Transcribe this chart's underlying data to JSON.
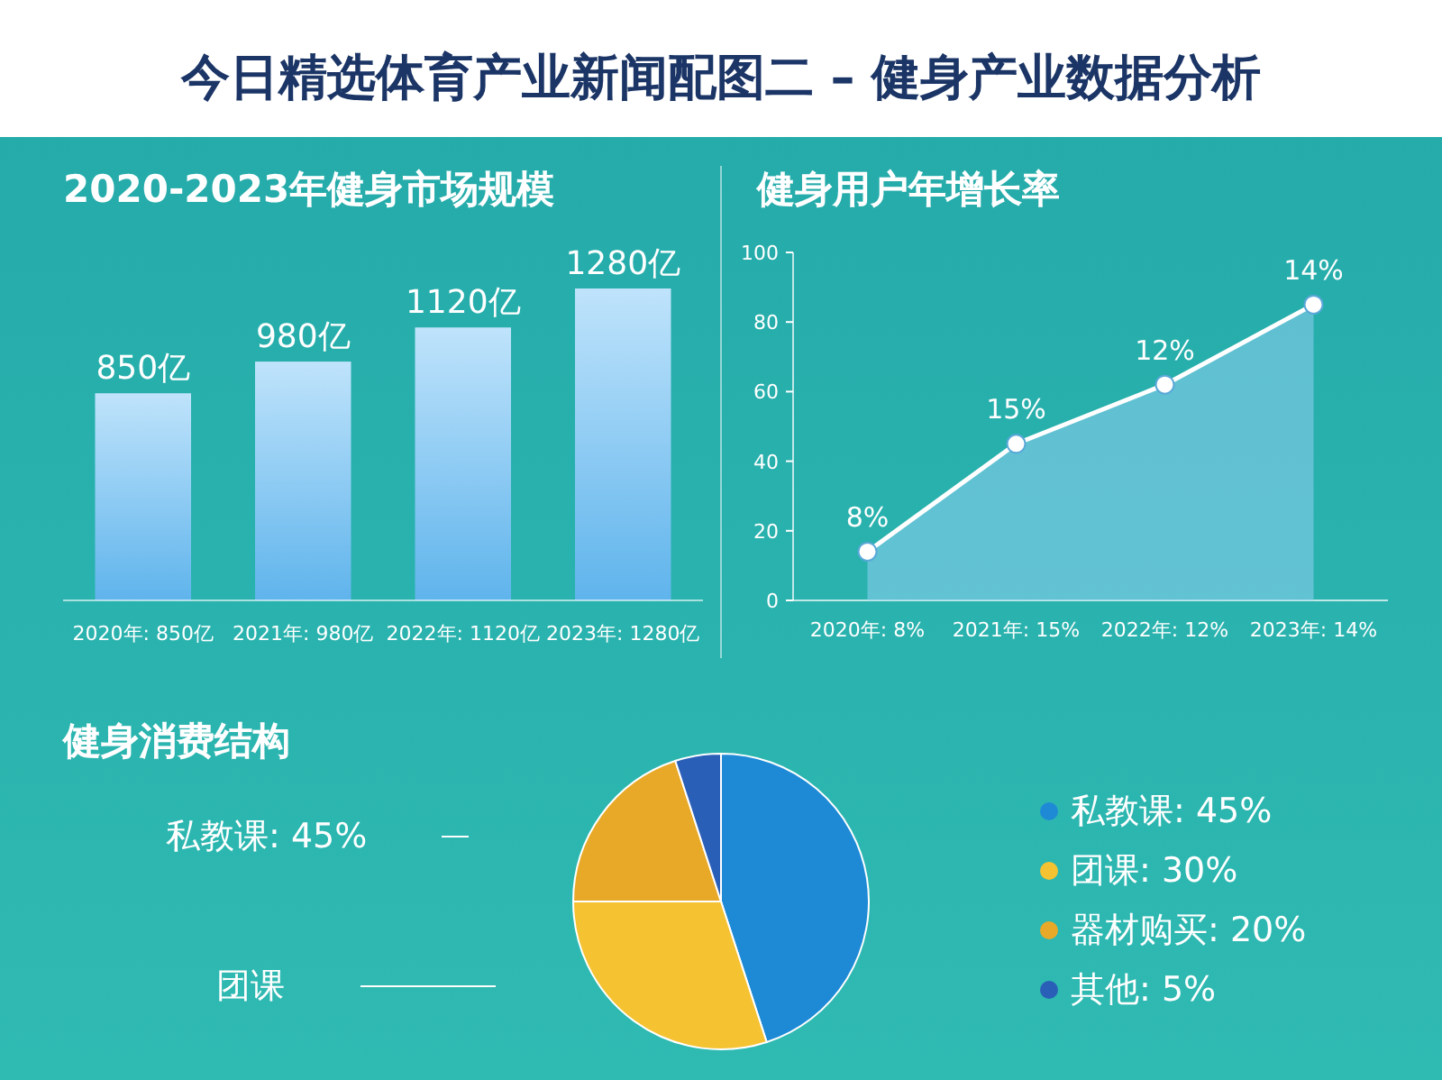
{
  "chart_data": [
    {
      "type": "bar",
      "title": "今日精选体育产业新闻配图二 – 健身产业数据分析",
      "subtitle": "2020-2023年健身市场规模",
      "categories": [
        "2020年: 850亿",
        "2021年: 980亿",
        "2022年: 1120亿",
        "2023年: 1280亿"
      ],
      "values": [
        850,
        980,
        1120,
        1280
      ],
      "value_labels": [
        "850亿",
        "980亿",
        "1120亿",
        "1280亿"
      ],
      "color": "#5fb4ec"
    },
    {
      "type": "area",
      "title": "健身用户年增长率",
      "categories": [
        "2020年: 8%",
        "2021年: 15%",
        "2022年: 12%",
        "2023年: 14%"
      ],
      "values": [
        14,
        45,
        62,
        85
      ],
      "annotations": [
        "8%",
        "15%",
        "12%",
        "14%"
      ],
      "color": "#ffffff",
      "marker": "circle",
      "ylim": [
        0,
        100
      ],
      "yticks": [
        0,
        20,
        40,
        60,
        80,
        100
      ]
    },
    {
      "type": "pie",
      "title": "健身消费结构",
      "categories": [
        "私教课: 45%",
        "团课: 30%",
        "器材购买: 20%",
        "其他: 5%"
      ],
      "values": [
        45,
        30,
        20,
        5
      ],
      "colors": [
        "#1e8ad6",
        "#f5c232",
        "#e9a928",
        "#2a5fb8"
      ],
      "legend": "right",
      "annotations": [
        "私教课: 45%",
        "团课"
      ]
    }
  ]
}
